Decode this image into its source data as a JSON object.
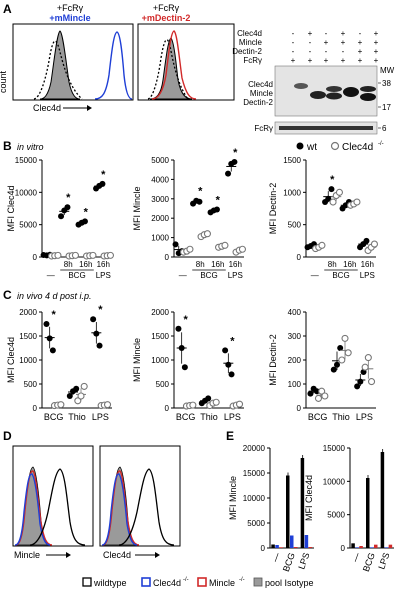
{
  "colors": {
    "black": "#000000",
    "blue": "#1f3fd6",
    "red": "#d12a2a",
    "grey": "#9a9a9a",
    "lightgrey": "#cfcfcf"
  },
  "panel_letters": [
    "A",
    "B",
    "C",
    "D",
    "E"
  ],
  "panel_A": {
    "hist1_title_line1": "+FcRγ",
    "hist1_title_line2": "+mMincle",
    "hist2_title_line1": "+FcRγ",
    "hist2_title_line2": "+mDectin-2",
    "y_label": "count",
    "x_label": "Clec4d",
    "blot_row_labels": [
      "Clec4d",
      "Mincle",
      "Dectin-2",
      "FcRγ"
    ],
    "blot_grid": [
      [
        "-",
        "+",
        "-",
        "+",
        "-",
        "+"
      ],
      [
        "-",
        "-",
        "+",
        "+",
        "+",
        "+"
      ],
      [
        "-",
        "-",
        "-",
        "-",
        "+",
        "+"
      ],
      [
        "+",
        "+",
        "+",
        "+",
        "+",
        "+"
      ]
    ],
    "blot_band_labels": [
      "Clec4d",
      "Mincle",
      "Dectin-2"
    ],
    "fcr_band_label": "FcRγ",
    "mw_label": "MW",
    "mw_values": [
      "38",
      "17",
      "6"
    ]
  },
  "panel_B": {
    "title": "in vitro",
    "legend_wt": "wt",
    "legend_ko": "Clec4d",
    "legend_ko_sup": "-/-",
    "group_label": "BCG",
    "charts": [
      {
        "ylabel": "MFI Clec4d",
        "yticks": [
          "0",
          "5000",
          "10000",
          "15000"
        ]
      },
      {
        "ylabel": "MFI Mincle",
        "yticks": [
          "0",
          "1000",
          "2000",
          "3000",
          "4000",
          "5000"
        ]
      },
      {
        "ylabel": "MFI Dectin-2",
        "yticks": [
          "0",
          "500",
          "1000",
          "1500"
        ]
      }
    ],
    "top_ticks": [
      "8h",
      "16h",
      "16h"
    ],
    "bottom_ticks": [
      "—",
      "BCG",
      "LPS"
    ]
  },
  "panel_C": {
    "title": "in vivo 4 d post i.p.",
    "charts": [
      {
        "ylabel": "MFI Clec4d",
        "yticks": [
          "0",
          "500",
          "1000",
          "1500",
          "2000"
        ]
      },
      {
        "ylabel": "MFI Mincle",
        "yticks": [
          "0",
          "500",
          "1000",
          "1500",
          "2000"
        ]
      },
      {
        "ylabel": "MFI Dectin-2",
        "yticks": [
          "0",
          "100",
          "200",
          "300",
          "400"
        ]
      }
    ],
    "xticks": [
      "BCG",
      "Thio",
      "LPS"
    ]
  },
  "panel_D": {
    "xlabels": [
      "Mincle",
      "Clec4d"
    ]
  },
  "panel_E": {
    "charts": [
      {
        "ylabel": "MFI Mincle",
        "yticks": [
          "0",
          "5000",
          "10000",
          "15000",
          "20000"
        ]
      },
      {
        "ylabel": "MFI Clec4d",
        "yticks": [
          "0",
          "5000",
          "10000",
          "15000"
        ]
      }
    ],
    "xticks": [
      "—",
      "BCG",
      "LPS"
    ]
  },
  "legend": {
    "wildtype": "wildtype",
    "clec4d_ko": "Clec4d",
    "mincle_ko": "Mincle",
    "ko_sup": "-/-",
    "pool_isotype": "pool Isotype"
  },
  "significance_mark": "*",
  "chart_data": [
    {
      "type": "scatter",
      "panel": "B1",
      "ylabel": "MFI Clec4d",
      "ylim": [
        0,
        15000
      ],
      "categories": [
        "—",
        "8h BCG",
        "16h BCG",
        "16h LPS"
      ],
      "series": [
        {
          "name": "wt",
          "values": [
            [
              300,
              250,
              350
            ],
            [
              6300,
              7200,
              7700
            ],
            [
              5000,
              5300,
              5500
            ],
            [
              10600,
              11000,
              11300
            ]
          ]
        },
        {
          "name": "Clec4d-/-",
          "values": [
            [
              150,
              200,
              250
            ],
            [
              150,
              200,
              250
            ],
            [
              150,
              200,
              250
            ],
            [
              150,
              200,
              250
            ]
          ]
        }
      ],
      "significant": [
        false,
        true,
        true,
        true
      ]
    },
    {
      "type": "scatter",
      "panel": "B2",
      "ylabel": "MFI Mincle",
      "ylim": [
        0,
        5000
      ],
      "categories": [
        "—",
        "8h BCG",
        "16h BCG",
        "16h LPS"
      ],
      "series": [
        {
          "name": "wt",
          "values": [
            [
              650,
              200,
              300
            ],
            [
              2750,
              2900,
              2850
            ],
            [
              2300,
              2400,
              2450
            ],
            [
              4300,
              4800,
              4900
            ]
          ]
        },
        {
          "name": "Clec4d-/-",
          "values": [
            [
              250,
              300,
              400
            ],
            [
              1050,
              1150,
              1200
            ],
            [
              500,
              550,
              600
            ],
            [
              250,
              350,
              400
            ]
          ]
        }
      ],
      "significant": [
        false,
        true,
        true,
        true
      ]
    },
    {
      "type": "scatter",
      "panel": "B3",
      "ylabel": "MFI Dectin-2",
      "ylim": [
        0,
        1500
      ],
      "categories": [
        "—",
        "8h BCG",
        "16h BCG",
        "16h LPS"
      ],
      "series": [
        {
          "name": "wt",
          "values": [
            [
              150,
              170,
              200
            ],
            [
              850,
              900,
              1050
            ],
            [
              750,
              800,
              850
            ],
            [
              150,
              200,
              250
            ]
          ]
        },
        {
          "name": "Clec4d-/-",
          "values": [
            [
              130,
              150,
              180
            ],
            [
              850,
              950,
              1000
            ],
            [
              800,
              820,
              850
            ],
            [
              100,
              150,
              200
            ]
          ]
        }
      ],
      "significant": [
        false,
        true,
        false,
        false
      ]
    },
    {
      "type": "scatter",
      "panel": "C1",
      "ylabel": "MFI Clec4d",
      "ylim": [
        0,
        2000
      ],
      "categories": [
        "BCG",
        "Thio",
        "LPS"
      ],
      "series": [
        {
          "name": "wt",
          "values": [
            [
              1750,
              1450,
              1200
            ],
            [
              250,
              350,
              400
            ],
            [
              1850,
              1550,
              1300
            ]
          ]
        },
        {
          "name": "Clec4d-/-",
          "values": [
            [
              50,
              60,
              70
            ],
            [
              150,
              250,
              450
            ],
            [
              50,
              60,
              70
            ]
          ]
        }
      ],
      "significant": [
        true,
        false,
        true
      ]
    },
    {
      "type": "scatter",
      "panel": "C2",
      "ylabel": "MFI Mincle",
      "ylim": [
        0,
        2000
      ],
      "categories": [
        "BCG",
        "Thio",
        "LPS"
      ],
      "series": [
        {
          "name": "wt",
          "values": [
            [
              1650,
              1250,
              850
            ],
            [
              100,
              150,
              200
            ],
            [
              1200,
              900,
              700
            ]
          ]
        },
        {
          "name": "Clec4d-/-",
          "values": [
            [
              40,
              50,
              60
            ],
            [
              50,
              100,
              120
            ],
            [
              40,
              60,
              80
            ]
          ]
        }
      ],
      "significant": [
        true,
        false,
        true
      ]
    },
    {
      "type": "scatter",
      "panel": "C3",
      "ylabel": "MFI Dectin-2",
      "ylim": [
        0,
        400
      ],
      "categories": [
        "BCG",
        "Thio",
        "LPS"
      ],
      "series": [
        {
          "name": "wt",
          "values": [
            [
              60,
              80,
              70
            ],
            [
              160,
              180,
              250
            ],
            [
              90,
              110,
              150
            ]
          ]
        },
        {
          "name": "Clec4d-/-",
          "values": [
            [
              40,
              70,
              50
            ],
            [
              200,
              290,
              230
            ],
            [
              170,
              210,
              110
            ]
          ]
        }
      ],
      "significant": [
        false,
        false,
        false
      ]
    },
    {
      "type": "bar",
      "panel": "E1",
      "ylabel": "MFI Mincle",
      "ylim": [
        0,
        20000
      ],
      "categories": [
        "—",
        "BCG",
        "LPS"
      ],
      "series": [
        {
          "name": "wildtype",
          "values": [
            700,
            14500,
            18000
          ]
        },
        {
          "name": "Clec4d-/-",
          "values": [
            600,
            2500,
            2600
          ]
        },
        {
          "name": "Mincle-/-",
          "values": [
            150,
            200,
            200
          ]
        }
      ]
    },
    {
      "type": "bar",
      "panel": "E2",
      "ylabel": "MFI Clec4d",
      "ylim": [
        0,
        15000
      ],
      "categories": [
        "—",
        "BCG",
        "LPS"
      ],
      "series": [
        {
          "name": "wildtype",
          "values": [
            700,
            10500,
            14400
          ]
        },
        {
          "name": "Clec4d-/-",
          "values": [
            100,
            100,
            100
          ]
        },
        {
          "name": "Mincle-/-",
          "values": [
            300,
            500,
            500
          ]
        }
      ]
    }
  ]
}
